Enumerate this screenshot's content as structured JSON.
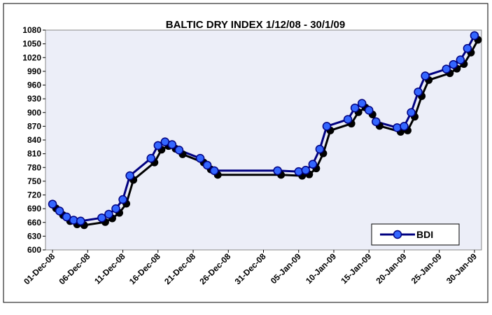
{
  "chart_data": {
    "type": "line",
    "title": "BALTIC DRY INDEX 1/12/08 - 30/1/09",
    "x": [
      "2008-12-01",
      "2008-12-02",
      "2008-12-03",
      "2008-12-04",
      "2008-12-05",
      "2008-12-08",
      "2008-12-09",
      "2008-12-10",
      "2008-12-11",
      "2008-12-12",
      "2008-12-15",
      "2008-12-16",
      "2008-12-17",
      "2008-12-18",
      "2008-12-19",
      "2008-12-22",
      "2008-12-23",
      "2008-12-24",
      "2009-01-02",
      "2009-01-05",
      "2009-01-06",
      "2009-01-07",
      "2009-01-08",
      "2009-01-09",
      "2009-01-12",
      "2009-01-13",
      "2009-01-14",
      "2009-01-15",
      "2009-01-16",
      "2009-01-19",
      "2009-01-20",
      "2009-01-21",
      "2009-01-22",
      "2009-01-23",
      "2009-01-26",
      "2009-01-27",
      "2009-01-28",
      "2009-01-29",
      "2009-01-30"
    ],
    "series": [
      {
        "name": "BDI",
        "color": "#3366ff",
        "line_color": "#000080",
        "values": [
          700,
          685,
          672,
          665,
          663,
          670,
          678,
          690,
          710,
          762,
          800,
          828,
          836,
          830,
          818,
          800,
          785,
          773,
          773,
          771,
          774,
          787,
          820,
          870,
          885,
          910,
          920,
          905,
          880,
          867,
          870,
          900,
          945,
          980,
          995,
          1005,
          1015,
          1040,
          1068
        ]
      }
    ],
    "xlim": [
      "2008-11-30",
      "2009-01-31"
    ],
    "xticks": [
      {
        "value": "2008-12-01",
        "label": "01-Dec-08"
      },
      {
        "value": "2008-12-06",
        "label": "06-Dec-08"
      },
      {
        "value": "2008-12-11",
        "label": "11-Dec-08"
      },
      {
        "value": "2008-12-16",
        "label": "16-Dec-08"
      },
      {
        "value": "2008-12-21",
        "label": "21-Dec-08"
      },
      {
        "value": "2008-12-26",
        "label": "26-Dec-08"
      },
      {
        "value": "2008-12-31",
        "label": "31-Dec-08"
      },
      {
        "value": "2009-01-05",
        "label": "05-Jan-09"
      },
      {
        "value": "2009-01-10",
        "label": "10-Jan-09"
      },
      {
        "value": "2009-01-15",
        "label": "15-Jan-09"
      },
      {
        "value": "2009-01-20",
        "label": "20-Jan-09"
      },
      {
        "value": "2009-01-25",
        "label": "25-Jan-09"
      },
      {
        "value": "2009-01-30",
        "label": "30-Jan-09"
      }
    ],
    "ylim": [
      600,
      1080
    ],
    "yticks": [
      600,
      630,
      660,
      690,
      720,
      750,
      780,
      810,
      840,
      870,
      900,
      930,
      960,
      990,
      1020,
      1050,
      1080
    ],
    "legend": "lower right"
  }
}
